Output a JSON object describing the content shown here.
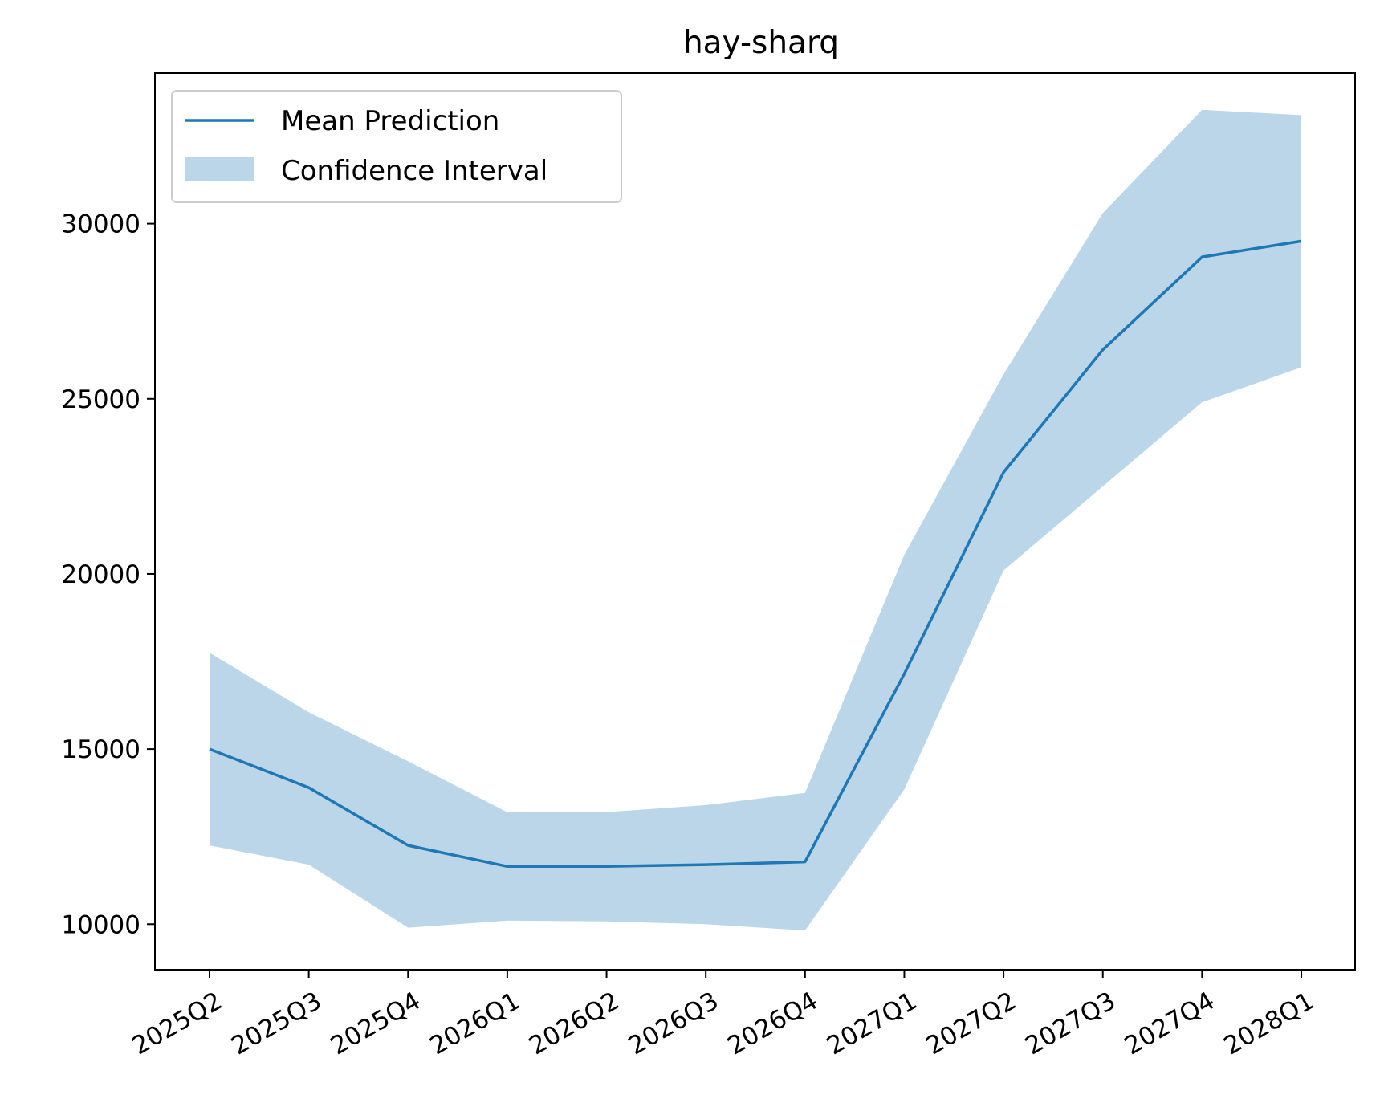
{
  "chart_data": {
    "type": "line",
    "title": "hay-sharq",
    "xlabel": "",
    "ylabel": "",
    "categories": [
      "2025Q2",
      "2025Q3",
      "2025Q4",
      "2026Q1",
      "2026Q2",
      "2026Q3",
      "2026Q4",
      "2027Q1",
      "2027Q2",
      "2027Q3",
      "2027Q4",
      "2028Q1"
    ],
    "series": [
      {
        "name": "Mean Prediction",
        "color": "#1f77b4",
        "values": [
          15000,
          13900,
          12250,
          11650,
          11650,
          11700,
          11780,
          17150,
          22900,
          26400,
          29050,
          29500
        ]
      }
    ],
    "band": {
      "name": "Confidence Interval",
      "color": "#1f77b4",
      "opacity": 0.3,
      "lower": [
        12250,
        11700,
        9900,
        10100,
        10080,
        10000,
        9820,
        13850,
        20100,
        22500,
        24900,
        25900
      ],
      "upper": [
        17750,
        16050,
        14650,
        13200,
        13200,
        13400,
        13750,
        20550,
        25700,
        30300,
        33250,
        33100
      ]
    },
    "yticks": [
      10000,
      15000,
      20000,
      25000,
      30000
    ],
    "ylim": [
      8700,
      34300
    ],
    "grid": false,
    "legend": "upper-left"
  }
}
